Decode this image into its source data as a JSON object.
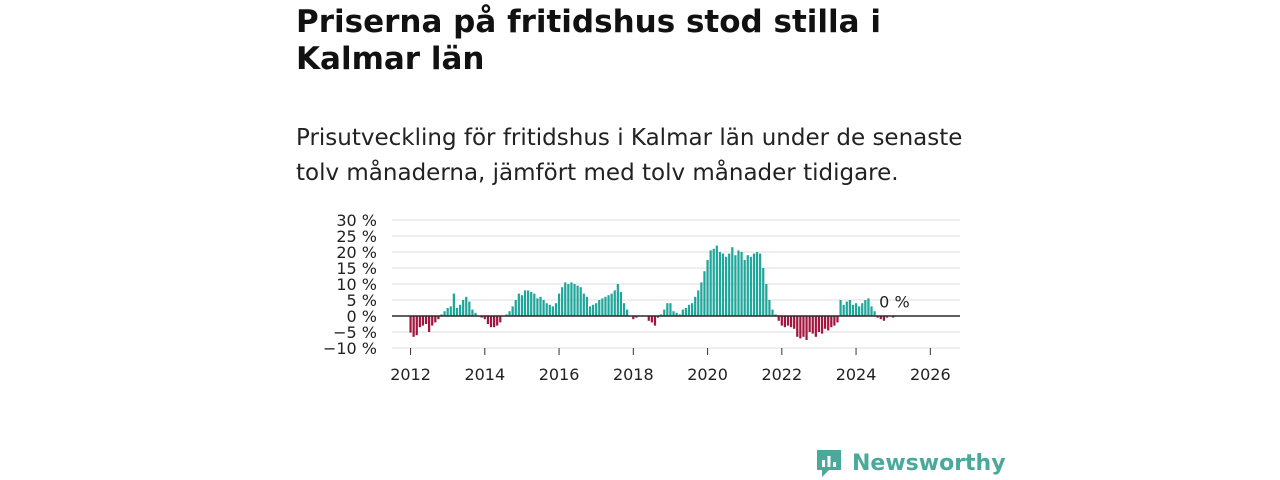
{
  "chart_data": {
    "type": "bar",
    "title": "Priserna på fritidshus stod stilla i Kalmar län",
    "subtitle": "Prisutveckling för fritidshus i Kalmar län under de senaste tolv månaderna, jämfört med tolv månader tidigare.",
    "xlabel": "",
    "ylabel": "",
    "ylim": [
      -10,
      30
    ],
    "yticks": [
      -10,
      -5,
      0,
      5,
      10,
      15,
      20,
      25,
      30
    ],
    "ytick_labels": [
      "−10 %",
      "−5 %",
      "0 %",
      "5 %",
      "10 %",
      "15 %",
      "20 %",
      "25 %",
      "30 %"
    ],
    "xticks": [
      2012,
      2014,
      2016,
      2018,
      2020,
      2022,
      2024,
      2026
    ],
    "xlim": [
      2011.5,
      2026.8
    ],
    "grid": true,
    "annotation": "0 %",
    "positive_color": "#1fa69a",
    "negative_color": "#a3143f",
    "x_start": "2012-01",
    "x_step": "month",
    "values": [
      -5.2,
      -6.5,
      -6.0,
      -3.5,
      -3.0,
      -2.5,
      -5.0,
      -3.0,
      -2.0,
      -1.0,
      0.5,
      1.5,
      2.5,
      3.0,
      7.0,
      2.5,
      3.5,
      5.0,
      6.0,
      4.5,
      2.0,
      1.0,
      0,
      -0.5,
      -1.0,
      -2.5,
      -3.5,
      -3.5,
      -3.0,
      -2.0,
      0,
      0.5,
      1.5,
      3.0,
      5.0,
      7.0,
      6.5,
      8.0,
      8.0,
      7.5,
      7.0,
      5.5,
      6.0,
      5.0,
      4.0,
      3.5,
      3.0,
      4.0,
      7.0,
      9.0,
      10.5,
      10.0,
      10.5,
      10.0,
      9.5,
      9.0,
      7.0,
      6.0,
      3.0,
      3.5,
      4.0,
      5.0,
      5.5,
      6.0,
      6.5,
      7.0,
      8.0,
      10.0,
      7.5,
      4.0,
      2.0,
      0,
      -1.0,
      -0.5,
      0,
      0,
      0,
      -1.5,
      -2.0,
      -3.0,
      -0.5,
      0.5,
      2.0,
      4.0,
      4.0,
      1.5,
      1.0,
      0.5,
      2.0,
      2.5,
      3.5,
      4.0,
      6.0,
      8.0,
      10.5,
      14.0,
      17.5,
      20.5,
      21.0,
      22.0,
      20.0,
      19.5,
      18.5,
      19.5,
      21.5,
      19.0,
      20.5,
      20.0,
      17.5,
      19.0,
      18.5,
      19.5,
      20.0,
      19.5,
      15.0,
      10.0,
      5.0,
      2.0,
      0.5,
      -1.5,
      -3.0,
      -3.5,
      -3.0,
      -3.5,
      -4.0,
      -6.5,
      -7.0,
      -6.5,
      -7.5,
      -5.0,
      -5.5,
      -6.5,
      -5.0,
      -5.5,
      -4.0,
      -4.5,
      -3.5,
      -3.0,
      -2.0,
      5.0,
      3.5,
      4.5,
      5.0,
      3.5,
      4.0,
      3.0,
      4.0,
      5.0,
      5.5,
      3.0,
      1.5,
      -0.5,
      -1.0,
      -1.5,
      -0.5,
      0,
      -0.5
    ]
  },
  "brand": {
    "name": "Newsworthy",
    "color": "#4aa99a"
  }
}
